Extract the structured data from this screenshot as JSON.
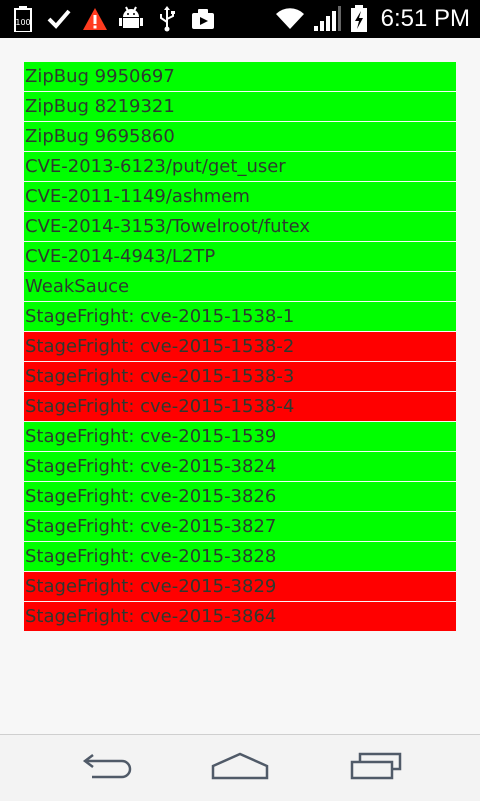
{
  "status_bar": {
    "time": "6:51 PM",
    "icons": [
      "battery-100-icon",
      "check-icon",
      "warning-icon",
      "android-debug-icon",
      "usb-icon",
      "media-icon",
      "wifi-icon",
      "signal-icon",
      "battery-charging-icon"
    ]
  },
  "colors": {
    "pass": "#00ff00",
    "fail": "#ff0000"
  },
  "tests": [
    {
      "label": "ZipBug 9950697",
      "status": "pass"
    },
    {
      "label": "ZipBug 8219321",
      "status": "pass"
    },
    {
      "label": "ZipBug 9695860",
      "status": "pass"
    },
    {
      "label": "CVE-2013-6123/put/get_user",
      "status": "pass"
    },
    {
      "label": "CVE-2011-1149/ashmem",
      "status": "pass"
    },
    {
      "label": "CVE-2014-3153/Towelroot/futex",
      "status": "pass"
    },
    {
      "label": "CVE-2014-4943/L2TP",
      "status": "pass"
    },
    {
      "label": "WeakSauce",
      "status": "pass"
    },
    {
      "label": "StageFright: cve-2015-1538-1",
      "status": "pass"
    },
    {
      "label": "StageFright: cve-2015-1538-2",
      "status": "fail"
    },
    {
      "label": "StageFright: cve-2015-1538-3",
      "status": "fail"
    },
    {
      "label": "StageFright: cve-2015-1538-4",
      "status": "fail"
    },
    {
      "label": "StageFright: cve-2015-1539",
      "status": "pass"
    },
    {
      "label": "StageFright: cve-2015-3824",
      "status": "pass"
    },
    {
      "label": "StageFright: cve-2015-3826",
      "status": "pass"
    },
    {
      "label": "StageFright: cve-2015-3827",
      "status": "pass"
    },
    {
      "label": "StageFright: cve-2015-3828",
      "status": "pass"
    },
    {
      "label": "StageFright: cve-2015-3829",
      "status": "fail"
    },
    {
      "label": "StageFright: cve-2015-3864",
      "status": "fail"
    }
  ],
  "nav": {
    "buttons": [
      "back-icon",
      "home-icon",
      "recent-apps-icon"
    ]
  }
}
